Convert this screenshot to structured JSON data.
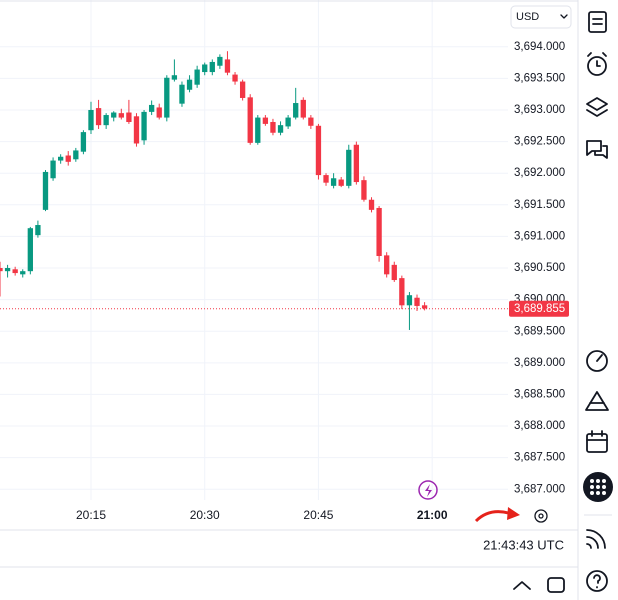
{
  "ui": {
    "currency": "USD",
    "clock": "21:43:43 UTC"
  },
  "chart_data": {
    "type": "candlestick",
    "x": [
      "20:03",
      "20:04",
      "20:05",
      "20:06",
      "20:07",
      "20:08",
      "20:09",
      "20:10",
      "20:11",
      "20:12",
      "20:13",
      "20:14",
      "20:15",
      "20:16",
      "20:17",
      "20:18",
      "20:19",
      "20:20",
      "20:21",
      "20:22",
      "20:23",
      "20:24",
      "20:25",
      "20:26",
      "20:27",
      "20:28",
      "20:29",
      "20:30",
      "20:31",
      "20:32",
      "20:33",
      "20:34",
      "20:35",
      "20:36",
      "20:37",
      "20:38",
      "20:39",
      "20:40",
      "20:41",
      "20:42",
      "20:43",
      "20:44",
      "20:45",
      "20:46",
      "20:47",
      "20:48",
      "20:49",
      "20:50",
      "20:51",
      "20:52",
      "20:53",
      "20:54",
      "20:55",
      "20:56",
      "20:57",
      "20:58",
      "20:59"
    ],
    "open": [
      3690.5,
      3690.45,
      3690.48,
      3690.4,
      3690.45,
      3691.02,
      3691.42,
      3691.92,
      3692.2,
      3692.28,
      3692.22,
      3692.34,
      3692.68,
      3693.03,
      3692.76,
      3692.88,
      3692.95,
      3692.96,
      3692.9,
      3692.52,
      3692.97,
      3693.04,
      3692.88,
      3693.48,
      3693.1,
      3693.32,
      3693.4,
      3693.6,
      3693.6,
      3693.7,
      3693.8,
      3693.56,
      3693.45,
      3693.2,
      3692.48,
      3692.88,
      3692.81,
      3692.64,
      3692.74,
      3692.88,
      3693.16,
      3692.88,
      3692.75,
      3691.97,
      3691.8,
      3691.9,
      3691.8,
      3692.45,
      3691.89,
      3691.58,
      3691.45,
      3690.7,
      3690.55,
      3690.34,
      3689.91,
      3690.03,
      3689.91
    ],
    "high": [
      3690.6,
      3690.55,
      3690.52,
      3690.48,
      3691.15,
      3691.25,
      3692.05,
      3692.25,
      3692.3,
      3692.35,
      3692.4,
      3692.68,
      3693.13,
      3693.16,
      3692.95,
      3692.98,
      3693.02,
      3693.16,
      3692.95,
      3693.0,
      3693.15,
      3693.1,
      3693.55,
      3693.8,
      3693.45,
      3693.55,
      3693.7,
      3693.75,
      3693.8,
      3693.88,
      3693.93,
      3693.6,
      3693.48,
      3693.25,
      3692.92,
      3692.92,
      3692.86,
      3692.82,
      3692.92,
      3693.35,
      3693.2,
      3692.92,
      3692.78,
      3692.0,
      3692.0,
      3691.94,
      3692.45,
      3692.5,
      3691.95,
      3691.62,
      3691.48,
      3690.75,
      3690.6,
      3690.38,
      3690.12,
      3690.08,
      3689.96
    ],
    "low": [
      3690.05,
      3690.35,
      3690.38,
      3690.35,
      3690.4,
      3690.98,
      3691.4,
      3691.88,
      3692.15,
      3692.12,
      3692.18,
      3692.3,
      3692.62,
      3692.7,
      3692.7,
      3692.82,
      3692.85,
      3692.78,
      3692.42,
      3692.45,
      3692.92,
      3692.85,
      3692.82,
      3693.45,
      3693.05,
      3693.28,
      3693.35,
      3693.55,
      3693.55,
      3693.65,
      3693.55,
      3693.4,
      3693.15,
      3692.45,
      3692.45,
      3692.75,
      3692.6,
      3692.6,
      3692.7,
      3692.85,
      3692.85,
      3692.7,
      3691.9,
      3691.8,
      3691.76,
      3691.78,
      3691.76,
      3691.82,
      3691.55,
      3691.38,
      3690.6,
      3690.35,
      3690.28,
      3689.85,
      3689.52,
      3689.82,
      3689.83
    ],
    "close": [
      3690.45,
      3690.5,
      3690.42,
      3690.45,
      3691.13,
      3691.18,
      3692.02,
      3692.2,
      3692.26,
      3692.18,
      3692.36,
      3692.65,
      3693.0,
      3692.76,
      3692.92,
      3692.96,
      3692.88,
      3692.81,
      3692.47,
      3692.97,
      3693.08,
      3692.88,
      3693.51,
      3693.55,
      3693.4,
      3693.48,
      3693.64,
      3693.72,
      3693.76,
      3693.84,
      3693.59,
      3693.45,
      3693.19,
      3692.48,
      3692.88,
      3692.78,
      3692.64,
      3692.76,
      3692.88,
      3693.11,
      3692.88,
      3692.75,
      3691.97,
      3691.85,
      3691.92,
      3691.8,
      3692.37,
      3691.86,
      3691.58,
      3691.42,
      3690.69,
      3690.4,
      3690.31,
      3689.91,
      3690.07,
      3689.9,
      3689.86
    ],
    "up_color": "#089981",
    "down_color": "#f23645",
    "last_price": {
      "value": 3689.855,
      "label": "3,689.855"
    },
    "xlim": [
      "20:03",
      "21:10"
    ],
    "xticks": [
      "20:15",
      "20:30",
      "20:45",
      "21:00"
    ],
    "ylim": [
      3686.83,
      3694.74
    ],
    "yticks": [
      {
        "value": 3694,
        "label": "3,694.000"
      },
      {
        "value": 3693.5,
        "label": "3,693.500"
      },
      {
        "value": 3693,
        "label": "3,693.000"
      },
      {
        "value": 3692.5,
        "label": "3,692.500"
      },
      {
        "value": 3692,
        "label": "3,692.000"
      },
      {
        "value": 3691.5,
        "label": "3,691.500"
      },
      {
        "value": 3691,
        "label": "3,691.000"
      },
      {
        "value": 3690.5,
        "label": "3,690.500"
      },
      {
        "value": 3690,
        "label": "3,690.000"
      },
      {
        "value": 3689.5,
        "label": "3,689.500"
      },
      {
        "value": 3689,
        "label": "3,689.000"
      },
      {
        "value": 3688.5,
        "label": "3,688.500"
      },
      {
        "value": 3688,
        "label": "3,688.000"
      },
      {
        "value": 3687.5,
        "label": "3,687.500"
      },
      {
        "value": 3687,
        "label": "3,687.000"
      }
    ],
    "grid": true
  }
}
